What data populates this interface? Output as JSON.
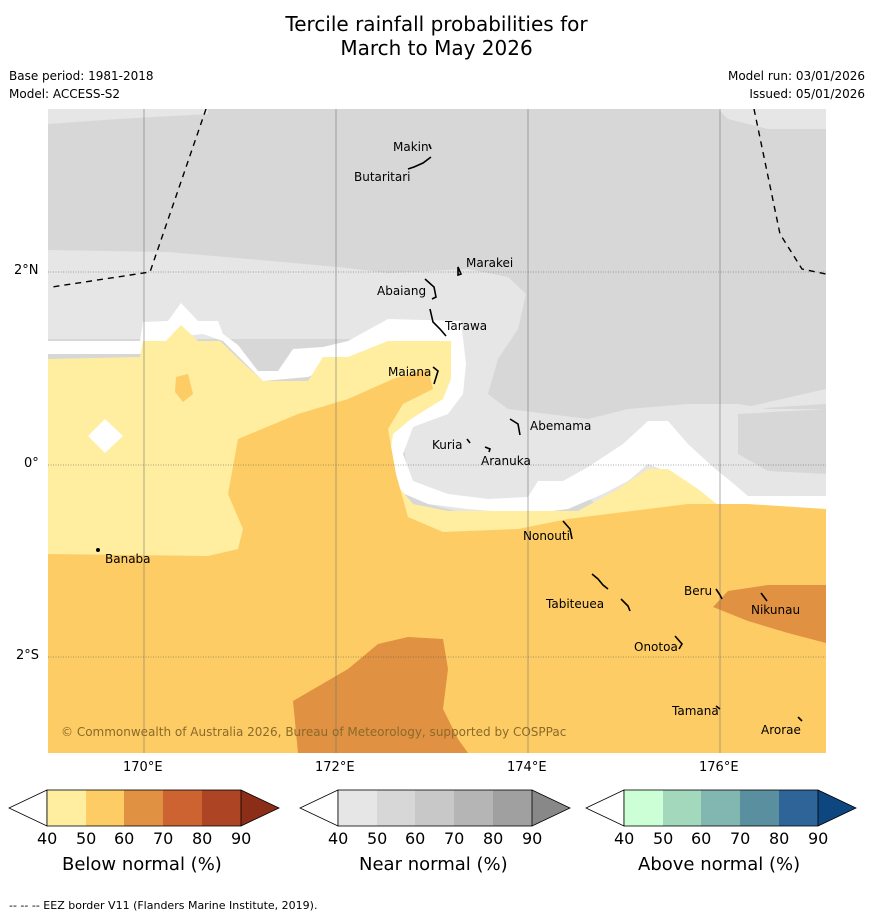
{
  "title": {
    "line1": "Tercile rainfall probabilities for",
    "line2": "March to May 2026"
  },
  "meta": {
    "base_period": "Base period: 1981-2018",
    "model": "Model: ACCESS-S2",
    "model_run": "Model run: 03/01/2026",
    "issued": "Issued: 05/01/2026"
  },
  "axes": {
    "lat_labels": [
      "2°N",
      "0°",
      "2°S"
    ],
    "lon_labels": [
      "170°E",
      "172°E",
      "174°E",
      "176°E"
    ]
  },
  "islands": [
    "Makin",
    "Butaritari",
    "Marakei",
    "Abaiang",
    "Tarawa",
    "Maiana",
    "Kuria",
    "Abemama",
    "Aranuka",
    "Nonouti",
    "Banaba",
    "Tabiteuea",
    "Beru",
    "Nikunau",
    "Onotoa",
    "Tamana",
    "Arorae"
  ],
  "copyright": "© Commonwealth of Australia 2026, Bureau of Meteorology, supported by COSPPac",
  "colorbars": [
    {
      "title": "Below normal (%)",
      "ticks": [
        "40",
        "50",
        "60",
        "70",
        "80",
        "90"
      ],
      "colors": [
        "#ffeda0",
        "#fecc65",
        "#e09142",
        "#cc6330",
        "#ad4524",
        "#8c2d18"
      ]
    },
    {
      "title": "Near normal (%)",
      "ticks": [
        "40",
        "50",
        "60",
        "70",
        "80",
        "90"
      ],
      "colors": [
        "#e6e6e6",
        "#d7d7d7",
        "#c8c8c8",
        "#b5b5b5",
        "#a0a0a0",
        "#888888"
      ]
    },
    {
      "title": "Above normal (%)",
      "ticks": [
        "40",
        "50",
        "60",
        "70",
        "80",
        "90"
      ],
      "colors": [
        "#ccffd6",
        "#a4d8bc",
        "#82b6b0",
        "#5a8fa0",
        "#2f6498",
        "#0e4680"
      ]
    }
  ],
  "footnote": "--  --  -- EEZ border V11 (Flanders Marine Institute, 2019).",
  "colors": {
    "near_light": "#e6e6e6",
    "near_mid": "#d7d7d7",
    "below_light": "#ffeda0",
    "below_mid": "#fecc65",
    "below_high": "#e09142"
  }
}
